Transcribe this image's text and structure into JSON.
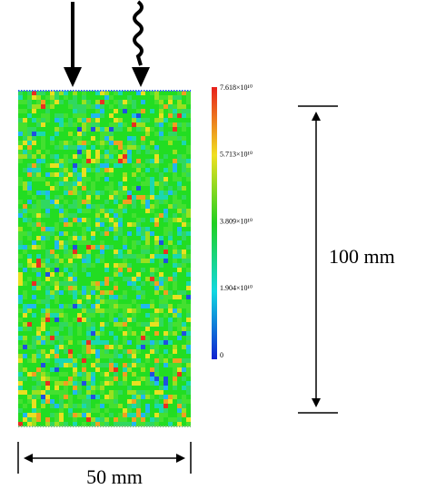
{
  "colorbar": {
    "labels": [
      "7.618×10¹⁰",
      "5.713×10¹⁰",
      "3.809×10¹⁰",
      "1.904×10¹⁰",
      "0"
    ]
  },
  "dimensions": {
    "height": "100 mm",
    "width": "50 mm"
  }
}
